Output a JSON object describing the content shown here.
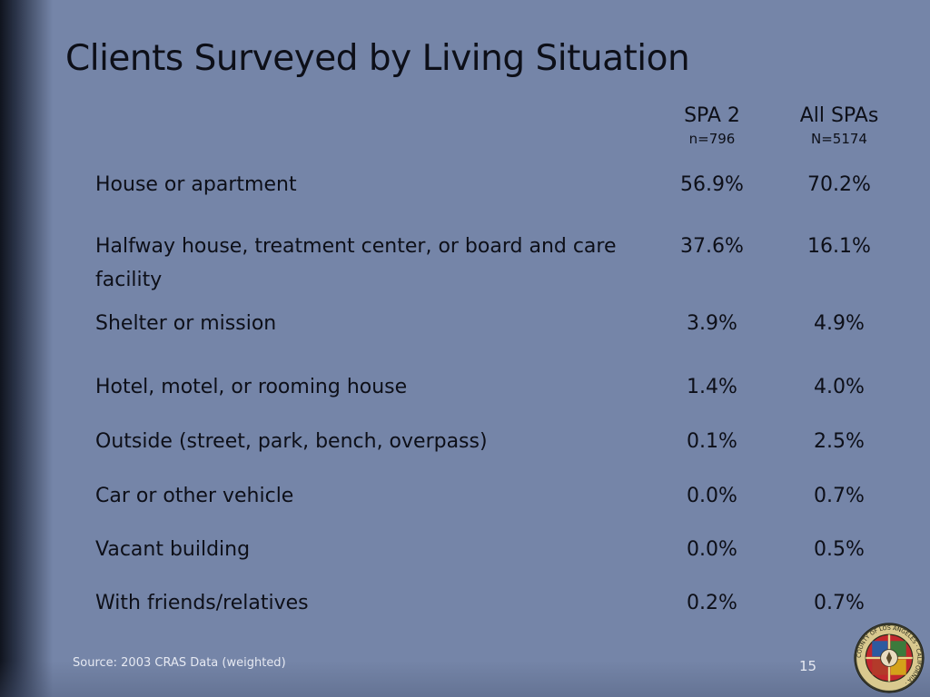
{
  "slide": {
    "title": "Clients Surveyed by Living Situation",
    "columns": [
      {
        "name": "SPA 2",
        "n": "n=796"
      },
      {
        "name": "All SPAs",
        "n": "N=5174"
      }
    ],
    "rows": [
      {
        "label": "House or apartment",
        "spa2": "56.9%",
        "all": "70.2%"
      },
      {
        "label": "Halfway house, treatment center, or board and care facility",
        "spa2": "37.6%",
        "all": "16.1%"
      },
      {
        "label": "Shelter or mission",
        "spa2": "3.9%",
        "all": "4.9%"
      },
      {
        "label": "Hotel, motel, or rooming house",
        "spa2": "1.4%",
        "all": "4.0%"
      },
      {
        "label": "Outside (street, park, bench, overpass)",
        "spa2": "0.1%",
        "all": "2.5%"
      },
      {
        "label": "Car or other vehicle",
        "spa2": "0.0%",
        "all": "0.7%"
      },
      {
        "label": "Vacant building",
        "spa2": "0.0%",
        "all": "0.5%"
      },
      {
        "label": "With friends/relatives",
        "spa2": "0.2%",
        "all": "0.7%"
      }
    ],
    "source": "Source: 2003 CRAS Data (weighted)",
    "page_number": "15"
  },
  "seal": {
    "text": "COUNTY OF LOS ANGELES · CALIFORNIA ·"
  }
}
